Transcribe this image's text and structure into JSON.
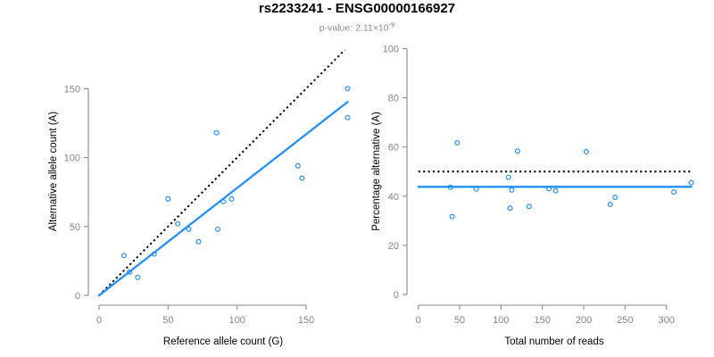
{
  "header": {
    "title": "rs2233241 - ENSG00000166927",
    "pvalue_label": "p-value: ",
    "pvalue_mantissa": "2.11×10",
    "pvalue_exponent": "-9"
  },
  "colors": {
    "point_blue": "#1E90FF",
    "fit_line_blue": "#1E90FF",
    "reference_line_black": "#000000",
    "axis_gray": "#8a8a8a",
    "tick_label_gray": "#858585",
    "axis_label_black": "#000000",
    "subtitle_gray": "#8c8c8c",
    "background": "#ffffff"
  },
  "chart_data": [
    {
      "type": "scatter",
      "name": "allele-counts",
      "xlabel": "Reference allele count (G)",
      "ylabel": "Alternative allele count (A)",
      "xlim": [
        0,
        180
      ],
      "ylim": [
        0,
        180
      ],
      "x_ticks": [
        0,
        50,
        100,
        150
      ],
      "y_ticks": [
        0,
        50,
        100,
        150
      ],
      "grid": false,
      "x": [
        18,
        40,
        22,
        28,
        50,
        57,
        65,
        86,
        72,
        90,
        96,
        85,
        144,
        147,
        180,
        180
      ],
      "y": [
        29,
        30,
        17,
        13,
        70,
        52,
        48,
        48,
        39,
        68,
        70,
        118,
        94,
        85,
        150,
        129
      ],
      "point_color": "#1E90FF",
      "lines": [
        {
          "name": "identity-line",
          "style": "dotted",
          "color": "#000000",
          "x1": 0,
          "y1": 0,
          "x2": 178,
          "y2": 178
        },
        {
          "name": "fit-line",
          "style": "solid",
          "color": "#1E90FF",
          "x1": 0,
          "y1": 0,
          "x2": 180,
          "y2": 140.3
        }
      ]
    },
    {
      "type": "scatter",
      "name": "percentage-vs-coverage",
      "xlabel": "Total number of reads",
      "ylabel": "Percentage alternative (A)",
      "xlim": [
        0,
        330
      ],
      "ylim": [
        0,
        100
      ],
      "x_ticks": [
        0,
        50,
        100,
        150,
        200,
        250,
        300
      ],
      "y_ticks": [
        0,
        20,
        40,
        60,
        80,
        100
      ],
      "grid": false,
      "x": [
        47,
        70,
        39,
        41,
        120,
        109,
        113,
        134,
        111,
        158,
        166,
        203,
        238,
        232,
        330,
        309
      ],
      "y": [
        61.7,
        42.9,
        43.6,
        31.7,
        58.3,
        47.7,
        42.5,
        35.8,
        35.1,
        43.0,
        42.2,
        58.1,
        39.5,
        36.6,
        45.5,
        41.7
      ],
      "point_color": "#1E90FF",
      "lines": [
        {
          "name": "expected-50pct-line",
          "style": "dotted",
          "color": "#000000",
          "x1": 0,
          "y1": 50,
          "x2": 330,
          "y2": 50
        },
        {
          "name": "mean-pct-line",
          "style": "solid",
          "color": "#1E90FF",
          "x1": 0,
          "y1": 43.8,
          "x2": 330,
          "y2": 43.8
        }
      ]
    }
  ]
}
